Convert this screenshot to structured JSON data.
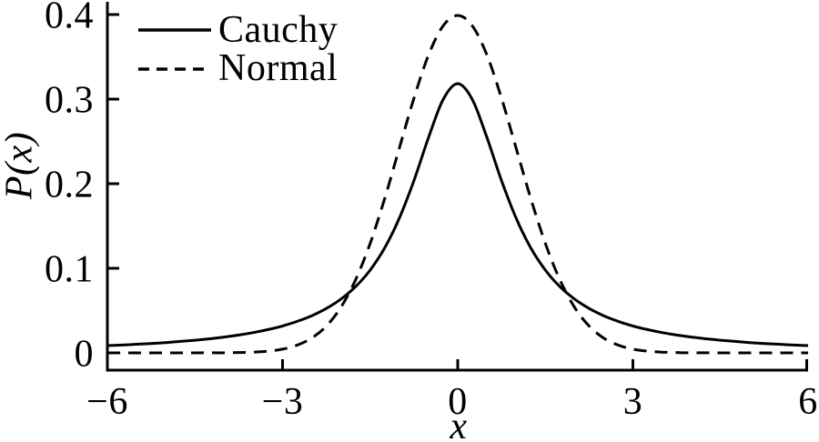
{
  "figure": {
    "background": "#ffffff",
    "foreground": "#000000"
  },
  "legend": {
    "position": "top-left",
    "items": [
      {
        "label": "Cauchy",
        "style": "solid"
      },
      {
        "label": "Normal",
        "style": "dashed"
      }
    ]
  },
  "axes": {
    "xlabel": "x",
    "ylabel": "P(x)",
    "xticks": [
      {
        "value": -6,
        "label": "−6"
      },
      {
        "value": -3,
        "label": "−3"
      },
      {
        "value": 0,
        "label": "0"
      },
      {
        "value": 3,
        "label": "3"
      },
      {
        "value": 6,
        "label": "6"
      }
    ],
    "yticks": [
      {
        "value": 0,
        "label": "0"
      },
      {
        "value": 0.1,
        "label": "0.1"
      },
      {
        "value": 0.2,
        "label": "0.2"
      },
      {
        "value": 0.3,
        "label": "0.3"
      },
      {
        "value": 0.4,
        "label": "0.4"
      }
    ]
  },
  "chart_data": {
    "type": "line",
    "title": "",
    "xlabel": "x",
    "ylabel": "P(x)",
    "xlim": [
      -6,
      6
    ],
    "ylim": [
      0,
      0.4
    ],
    "grid": false,
    "legend_position": "top-left",
    "x": [
      -6,
      -5.75,
      -5.5,
      -5.25,
      -5,
      -4.75,
      -4.5,
      -4.25,
      -4,
      -3.75,
      -3.5,
      -3.25,
      -3,
      -2.75,
      -2.5,
      -2.25,
      -2,
      -1.75,
      -1.5,
      -1.25,
      -1,
      -0.75,
      -0.5,
      -0.25,
      0,
      0.25,
      0.5,
      0.75,
      1,
      1.25,
      1.5,
      1.75,
      2,
      2.25,
      2.5,
      2.75,
      3,
      3.25,
      3.5,
      3.75,
      4,
      4.25,
      4.5,
      4.75,
      5,
      5.25,
      5.5,
      5.75,
      6
    ],
    "series": [
      {
        "name": "Cauchy",
        "line_style": "solid",
        "color": "#000000",
        "peak": 0.3183,
        "values": [
          0.0086,
          0.0093,
          0.0102,
          0.0111,
          0.0122,
          0.0135,
          0.015,
          0.0167,
          0.0187,
          0.0211,
          0.024,
          0.0275,
          0.0318,
          0.0372,
          0.0439,
          0.0525,
          0.0637,
          0.0783,
          0.0979,
          0.1242,
          0.1592,
          0.2037,
          0.2546,
          0.2996,
          0.3183,
          0.2996,
          0.2546,
          0.2037,
          0.1592,
          0.1242,
          0.0979,
          0.0783,
          0.0637,
          0.0525,
          0.0439,
          0.0372,
          0.0318,
          0.0275,
          0.024,
          0.0211,
          0.0187,
          0.0167,
          0.015,
          0.0135,
          0.0122,
          0.0111,
          0.0102,
          0.0093,
          0.0086
        ]
      },
      {
        "name": "Normal",
        "line_style": "dashed",
        "color": "#000000",
        "peak": 0.3989,
        "values": [
          0.0,
          0.0,
          0.0,
          0.0,
          0.0,
          0.0,
          0.0,
          0.0001,
          0.0001,
          0.0004,
          0.0009,
          0.002,
          0.0044,
          0.0091,
          0.0175,
          0.0317,
          0.054,
          0.0863,
          0.1295,
          0.1826,
          0.242,
          0.3011,
          0.3521,
          0.3867,
          0.3989,
          0.3867,
          0.3521,
          0.3011,
          0.242,
          0.1826,
          0.1295,
          0.0863,
          0.054,
          0.0317,
          0.0175,
          0.0091,
          0.0044,
          0.002,
          0.0009,
          0.0004,
          0.0001,
          0.0001,
          0.0,
          0.0,
          0.0,
          0.0,
          0.0,
          0.0,
          0.0
        ]
      }
    ]
  }
}
